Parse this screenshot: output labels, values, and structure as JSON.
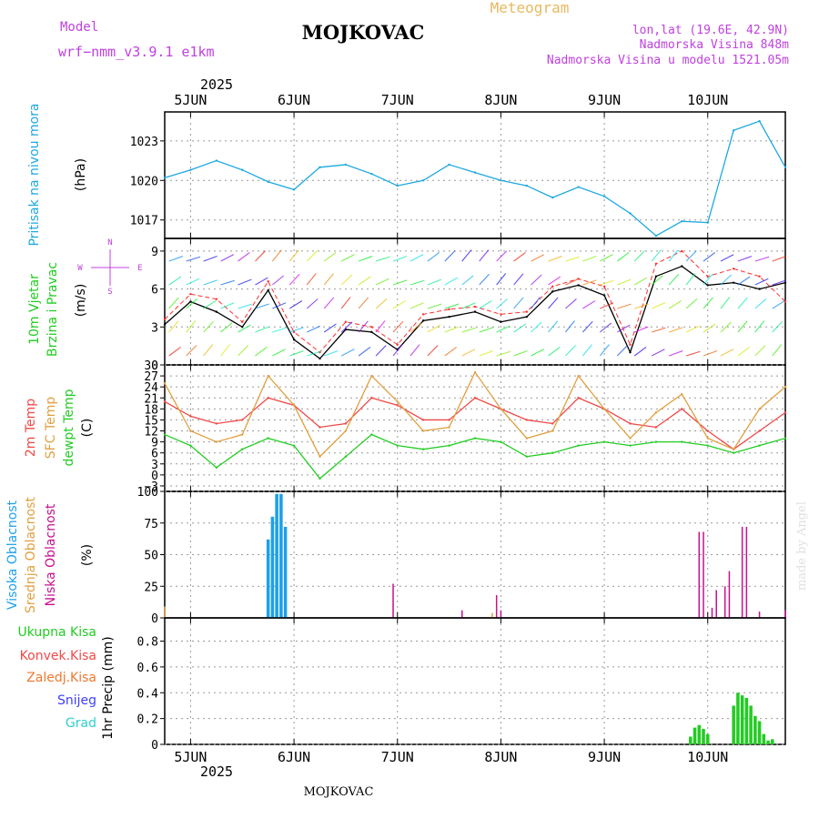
{
  "header": {
    "model_label": "Model",
    "model_name": "wrf−nmm_v3.9.1  e1km",
    "title": "MOJKOVAC",
    "meteogram": "Meteogram",
    "coords": "lon,lat (19.6E, 42.9N)",
    "elevation": "Nadmorska Visina 848m",
    "model_elevation": "Nadmorska Visina u modelu 1521.05m",
    "year": "2025",
    "footer": "MOJKOVAC",
    "signature": "made by Angel"
  },
  "days": [
    "5JUN",
    "6JUN",
    "7JUN",
    "8JUN",
    "9JUN",
    "10JUN"
  ],
  "colors": {
    "pressure": "#1ea8e0",
    "temp2m": "#f04848",
    "sfc": "#e0a040",
    "dew": "#22cc22",
    "high": "#1ea0e8",
    "mid": "#e0a040",
    "low": "#c8108c",
    "precip": "#22cc22",
    "snow": "#4040ff",
    "hail": "#30d0d0",
    "wind_trace": "#000000",
    "gust": "#ff3030",
    "dir_label": "#c040e0"
  },
  "labels": {
    "pressure_name": "Pritisak na nivou mora",
    "pressure_unit": "(hPa)",
    "wind_name1": "10m Vjetar",
    "wind_name2": "Brzina i Pravac",
    "wind_unit": "(m/s)",
    "compass": [
      "N",
      "W",
      "E",
      "S"
    ],
    "temp2m": "2m Temp",
    "sfc": "SFC Temp",
    "dew": "dewpt Temp",
    "temp_unit": "(C)",
    "high": "Visoka Oblacnost",
    "mid": "Srednja Oblacnost",
    "low": "Niska Oblacnost",
    "cloud_unit": "(%)",
    "total": "Ukupna Kisa",
    "convective": "Konvek.Kisa",
    "frozen": "Zaledj.Kisa",
    "snow": "Snijeg",
    "hail": "Grad",
    "precip_unit": "1hr Precip (mm)"
  },
  "chart_data": [
    {
      "type": "line",
      "panel": "pressure",
      "y_ticks": [
        "1017",
        "1020",
        "1023"
      ],
      "ylim": [
        1015.6,
        1025.2
      ],
      "grid": true,
      "x_hours": [
        0,
        6,
        12,
        18,
        24,
        30,
        36,
        42,
        48,
        54,
        60,
        66,
        72,
        78,
        84,
        90,
        96,
        102,
        108,
        114,
        120,
        126,
        132,
        138,
        144
      ],
      "series": [
        {
          "key": "pressure",
          "values": [
            1020.2,
            1020.8,
            1021.5,
            1020.8,
            1019.9,
            1019.3,
            1021.0,
            1021.2,
            1020.5,
            1019.6,
            1020.0,
            1021.2,
            1020.6,
            1020.0,
            1019.6,
            1018.7,
            1019.5,
            1018.8,
            1017.5,
            1015.8,
            1016.9,
            1016.8,
            1023.8,
            1024.5,
            1021.0
          ]
        }
      ]
    },
    {
      "type": "line",
      "panel": "wind",
      "y_ticks": [
        "0",
        "3",
        "6",
        "9"
      ],
      "ylim": [
        0,
        10
      ],
      "grid": true,
      "x_hours": [
        0,
        6,
        12,
        18,
        24,
        30,
        36,
        42,
        48,
        54,
        60,
        66,
        72,
        78,
        84,
        90,
        96,
        102,
        108,
        114,
        120,
        126,
        132,
        138,
        144
      ],
      "series": [
        {
          "key": "speed",
          "values": [
            3.2,
            5.0,
            4.2,
            3.0,
            5.9,
            2.0,
            0.5,
            2.8,
            2.6,
            1.2,
            3.5,
            3.8,
            4.2,
            3.4,
            3.8,
            5.8,
            6.3,
            5.5,
            1.0,
            7.0,
            7.8,
            6.3,
            6.5,
            6.0,
            6.5
          ]
        },
        {
          "key": "gust",
          "values": [
            3.6,
            5.6,
            5.2,
            3.4,
            6.6,
            2.6,
            1.0,
            3.4,
            3.0,
            1.6,
            4.0,
            4.4,
            4.6,
            4.0,
            4.2,
            6.2,
            6.8,
            6.2,
            1.6,
            8.0,
            9.0,
            7.0,
            7.6,
            7.0,
            5.0
          ]
        }
      ]
    },
    {
      "type": "line",
      "panel": "temperature",
      "y_ticks": [
        "−3",
        "0",
        "3",
        "6",
        "9",
        "12",
        "15",
        "18",
        "21",
        "24",
        "27",
        "30"
      ],
      "ylim": [
        -4.5,
        30
      ],
      "grid": true,
      "x_hours": [
        0,
        6,
        12,
        18,
        24,
        30,
        36,
        42,
        48,
        54,
        60,
        66,
        72,
        78,
        84,
        90,
        96,
        102,
        108,
        114,
        120,
        126,
        132,
        138,
        144
      ],
      "series": [
        {
          "key": "temp2m",
          "values": [
            20,
            16,
            14,
            15,
            21,
            19,
            13,
            14,
            21,
            19,
            15,
            15,
            21,
            18,
            15,
            14,
            21,
            18,
            14,
            13,
            18,
            12,
            7,
            12,
            17
          ]
        },
        {
          "key": "sfc",
          "values": [
            25,
            12,
            9,
            11,
            27,
            19,
            5,
            12,
            27,
            20,
            12,
            13,
            28,
            18,
            10,
            12,
            27,
            18,
            10,
            17,
            22,
            10,
            7,
            18,
            24
          ]
        },
        {
          "key": "dew",
          "values": [
            11,
            8,
            2,
            7,
            10,
            8,
            -1,
            5,
            11,
            8,
            7,
            8,
            10,
            9,
            5,
            6,
            8,
            9,
            8,
            9,
            9,
            8,
            6,
            8,
            10
          ]
        }
      ]
    },
    {
      "type": "bar",
      "panel": "clouds",
      "y_ticks": [
        "0",
        "25",
        "50",
        "75",
        "100"
      ],
      "ylim": [
        0,
        100
      ],
      "grid": true,
      "series": [
        {
          "key": "high",
          "points": [
            [
              24,
              62
            ],
            [
              25,
              80
            ],
            [
              26,
              98
            ],
            [
              27,
              98
            ],
            [
              28,
              72
            ]
          ]
        },
        {
          "key": "mid",
          "points": [
            [
              0,
              9
            ],
            [
              76,
              4
            ]
          ]
        },
        {
          "key": "low",
          "points": [
            [
              53,
              27
            ],
            [
              69,
              6
            ],
            [
              77,
              18
            ],
            [
              78,
              6
            ],
            [
              124,
              68
            ],
            [
              125,
              68
            ],
            [
              127,
              8
            ],
            [
              128,
              22
            ],
            [
              130,
              25
            ],
            [
              131,
              37
            ],
            [
              134,
              72
            ],
            [
              135,
              72
            ],
            [
              138,
              5
            ],
            [
              144,
              6
            ]
          ]
        }
      ]
    },
    {
      "type": "bar",
      "panel": "precipitation",
      "y_ticks": [
        "0",
        "0.2",
        "0.4",
        "0.6",
        "0.8"
      ],
      "ylim": [
        0,
        0.98
      ],
      "grid": true,
      "series": [
        {
          "key": "total",
          "points": [
            [
              122,
              0.06
            ],
            [
              123,
              0.13
            ],
            [
              124,
              0.15
            ],
            [
              125,
              0.12
            ],
            [
              126,
              0.08
            ],
            [
              132,
              0.3
            ],
            [
              133,
              0.4
            ],
            [
              134,
              0.38
            ],
            [
              135,
              0.36
            ],
            [
              136,
              0.3
            ],
            [
              137,
              0.22
            ],
            [
              138,
              0.18
            ],
            [
              139,
              0.08
            ],
            [
              140,
              0.03
            ],
            [
              141,
              0.04
            ]
          ]
        }
      ]
    }
  ]
}
